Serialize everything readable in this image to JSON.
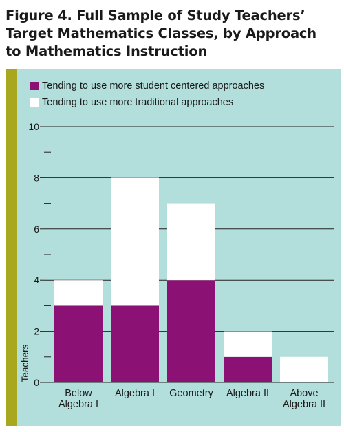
{
  "figure": {
    "title_lines": [
      "Figure 4. Full Sample of Study Teachers’",
      "Target Mathematics Classes, by Approach",
      "to Mathematics Instruction"
    ]
  },
  "colors": {
    "panel": "#b2dfdb",
    "stripe": "#a9a71e",
    "student_centered": "#8b1274",
    "traditional": "#ffffff",
    "axis": "#222222"
  },
  "chart_data": {
    "type": "bar",
    "stacked": true,
    "title": "Figure 4. Full Sample of Study Teachers’ Target Mathematics Classes, by Approach to Mathematics Instruction",
    "categories": [
      [
        "Below",
        "Algebra I"
      ],
      [
        "Algebra I"
      ],
      [
        "Geometry"
      ],
      [
        "Algebra II"
      ],
      [
        "Above",
        "Algebra II"
      ]
    ],
    "series": [
      {
        "name": "Tending to use more student centered approaches",
        "values": [
          3,
          3,
          4,
          1,
          0
        ]
      },
      {
        "name": "Tending to use more traditional approaches",
        "values": [
          1,
          5,
          3,
          1,
          1
        ]
      }
    ],
    "xlabel": "",
    "ylabel": "Teachers",
    "ylim": [
      0,
      10
    ],
    "y_labeled_ticks": [
      0,
      2,
      4,
      6,
      8,
      10
    ],
    "y_minor_ticks": [
      1,
      3,
      5,
      7,
      9
    ],
    "grid": true,
    "legend_position": "top-left"
  }
}
